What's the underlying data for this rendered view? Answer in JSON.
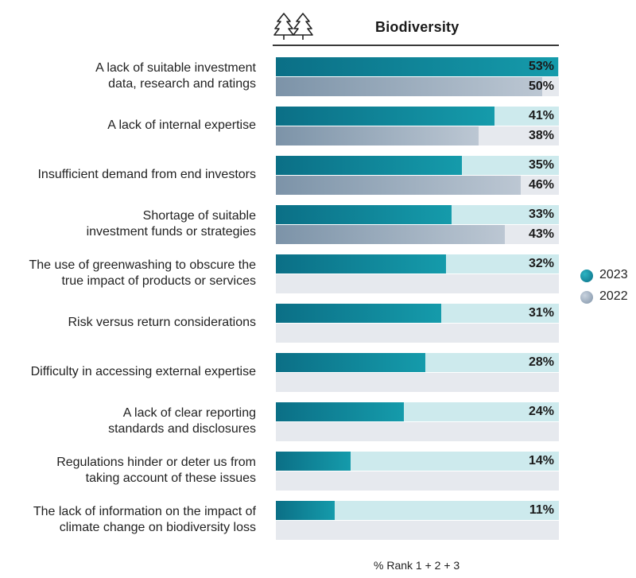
{
  "chart_data": {
    "type": "bar",
    "orientation": "horizontal",
    "title": "Biodiversity",
    "title_icon": "trees-icon",
    "xlabel": "% Rank 1 + 2 + 3",
    "ylabel": "",
    "xlim": [
      0,
      100
    ],
    "legend_position": "right",
    "categories": [
      [
        "A lack of suitable investment",
        "data, research and ratings"
      ],
      [
        "A lack of internal expertise"
      ],
      [
        "Insufficient demand from end investors"
      ],
      [
        "Shortage of suitable",
        "investment funds or strategies"
      ],
      [
        "The use of greenwashing to obscure the",
        "true impact of products or services"
      ],
      [
        "Risk versus return considerations"
      ],
      [
        "Difficulty in accessing external expertise"
      ],
      [
        "A lack of clear reporting",
        "standards and disclosures"
      ],
      [
        "Regulations hinder or deter us from",
        "taking account of these issues"
      ],
      [
        "The lack of information on the impact of",
        "climate change on biodiversity loss"
      ]
    ],
    "series": [
      {
        "name": "2023",
        "color": "#0e8a9c",
        "values": [
          53,
          41,
          35,
          33,
          32,
          31,
          28,
          24,
          14,
          11
        ]
      },
      {
        "name": "2022",
        "color": "#9aaabd",
        "values": [
          50,
          38,
          46,
          43,
          null,
          null,
          null,
          null,
          null,
          null
        ]
      }
    ]
  }
}
